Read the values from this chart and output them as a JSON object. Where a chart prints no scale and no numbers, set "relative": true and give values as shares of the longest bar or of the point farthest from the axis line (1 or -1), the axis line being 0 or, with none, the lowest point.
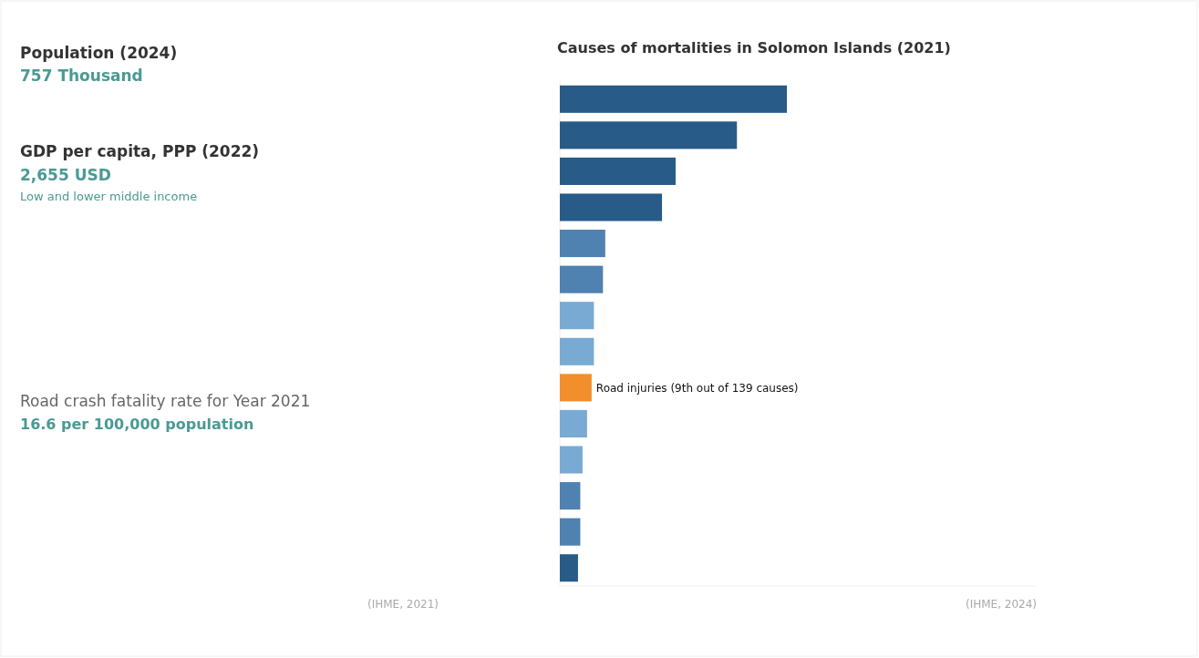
{
  "chart_data": [
    {
      "type": "other",
      "annotations": [
        "Population (2024)",
        "757 Thousand",
        "GDP per capita, PPP (2022)",
        "2,655 USD",
        "Low and lower middle income",
        "Road crash fatality rate for Year 2021",
        "16.6 per 100,000 population",
        "(IHME, 2021)"
      ]
    },
    {
      "type": "bar",
      "orientation": "horizontal",
      "relative": true,
      "title": "Causes of mortalities in Solomon Islands (2021)",
      "categories": [
        null,
        null,
        null,
        null,
        null,
        null,
        null,
        null,
        null,
        null,
        null,
        null,
        null,
        null
      ],
      "values": [
        1,
        0.78,
        0.51,
        0.45,
        0.2,
        0.19,
        0.15,
        0.15,
        0.14,
        0.12,
        0.1,
        0.09,
        0.09,
        0.08
      ],
      "colors": [
        "#285b88",
        "#285b88",
        "#285b88",
        "#285b88",
        "#4f81b1",
        "#4f81b1",
        "#78aad3",
        "#78aad3",
        "#f28e2b",
        "#78aad3",
        "#78aad3",
        "#4f81b1",
        "#4f81b1",
        "#285b88"
      ],
      "annotations": [
        "(IHME, 2024)",
        {
          "text": "Road injuries (9th out of 139 causes)",
          "x": 0.14
        }
      ]
    }
  ]
}
